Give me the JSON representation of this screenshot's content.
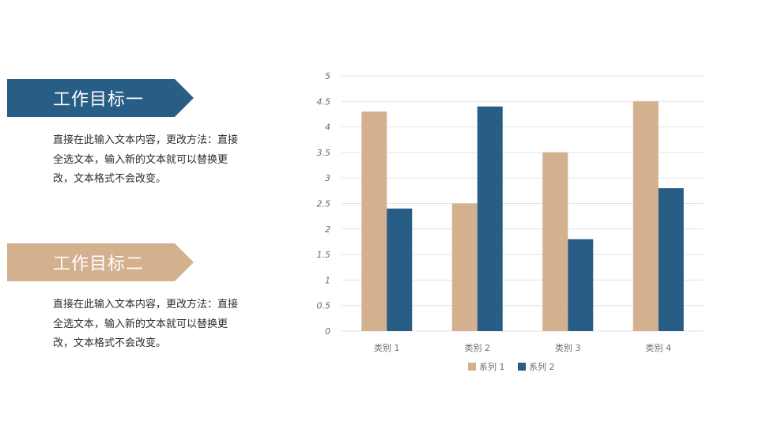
{
  "goals": [
    {
      "title": "工作目标一",
      "description": "直接在此输入文本内容，更改方法：直接全选文本，输入新的文本就可以替换更改，文本格式不会改变。",
      "color": "#285d86"
    },
    {
      "title": "工作目标二",
      "description": "直接在此输入文本内容，更改方法：直接全选文本，输入新的文本就可以替换更改，文本格式不会改变。",
      "color": "#d3b08e"
    }
  ],
  "chart_data": {
    "type": "bar",
    "categories": [
      "类别 1",
      "类别 2",
      "类别 3",
      "类别 4"
    ],
    "series": [
      {
        "name": "系列 1",
        "values": [
          4.3,
          2.5,
          3.5,
          4.5
        ],
        "color": "#d3b08e"
      },
      {
        "name": "系列 2",
        "values": [
          2.4,
          4.4,
          1.8,
          2.8
        ],
        "color": "#285d86"
      }
    ],
    "ylim": [
      0,
      5
    ],
    "yticks": [
      "0",
      "0.5",
      "1",
      "1.5",
      "2",
      "2.5",
      "3",
      "3.5",
      "4",
      "4.5",
      "5"
    ],
    "grid": true,
    "legend_position": "bottom"
  }
}
